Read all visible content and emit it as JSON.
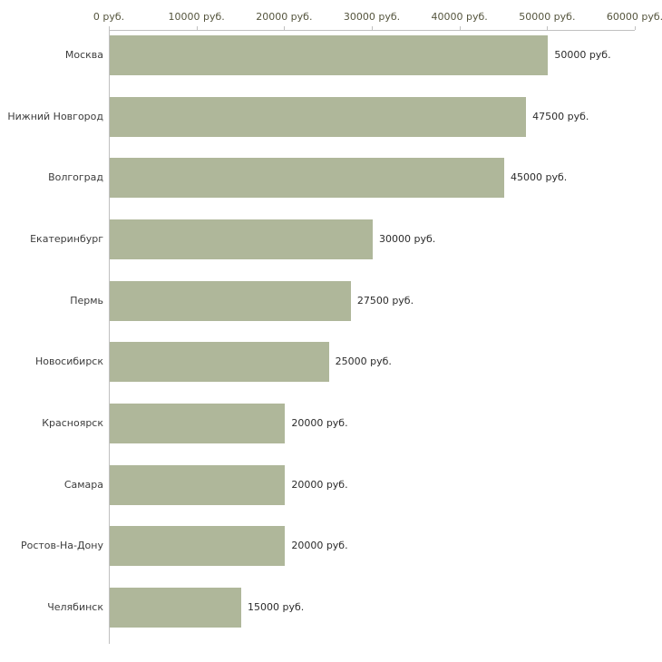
{
  "chart_data": {
    "type": "bar",
    "orientation": "horizontal",
    "title": "",
    "xlabel": "",
    "ylabel": "",
    "xlim": [
      0,
      60000
    ],
    "grid": false,
    "legend": "none",
    "bar_color": "#afb79a",
    "axis_color": "#c0c0c0",
    "categories": [
      "Москва",
      "Нижний Новгород",
      "Волгоград",
      "Екатеринбург",
      "Пермь",
      "Новосибирск",
      "Красноярск",
      "Самара",
      "Ростов-На-Дону",
      "Челябинск"
    ],
    "values": [
      50000,
      47500,
      45000,
      30000,
      27500,
      25000,
      20000,
      20000,
      20000,
      15000
    ],
    "value_labels": [
      "50000 руб.",
      "47500 руб.",
      "45000 руб.",
      "30000 руб.",
      "27500 руб.",
      "25000 руб.",
      "20000 руб.",
      "20000 руб.",
      "20000 руб.",
      "15000 руб."
    ],
    "x_ticks": [
      0,
      10000,
      20000,
      30000,
      40000,
      50000,
      60000
    ],
    "x_tick_labels": [
      "0 руб.",
      "10000 руб.",
      "20000 руб.",
      "30000 руб.",
      "40000 руб.",
      "50000 руб.",
      "60000 руб."
    ]
  }
}
